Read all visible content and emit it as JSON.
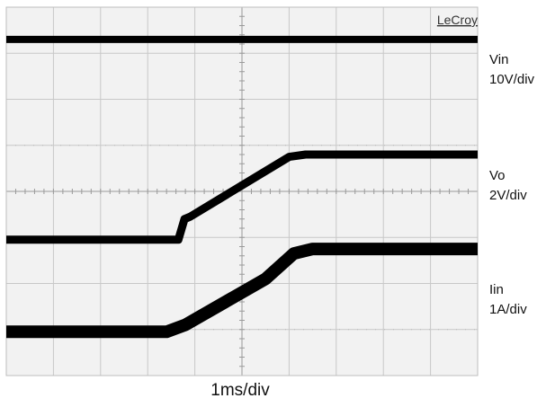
{
  "brand": "LeCroy",
  "x_caption": "1ms/div",
  "colors": {
    "background": "#f2f2f2",
    "grid": "#c8c8c8",
    "trace": "#000000"
  },
  "chart_data": {
    "type": "line",
    "title": "",
    "xlabel": "1ms/div",
    "ylabel": "",
    "x_unit": "ms",
    "xlim": [
      0,
      10
    ],
    "y_unit": "div",
    "ylim": [
      0,
      8
    ],
    "grid": true,
    "legend": "right",
    "series": [
      {
        "name": "Vin",
        "scale": "10V/div",
        "x": [
          0,
          10
        ],
        "y": [
          7.3,
          7.3
        ]
      },
      {
        "name": "Vo",
        "scale": "2V/div",
        "x": [
          0,
          3.65,
          3.78,
          3.9,
          6.0,
          6.35,
          10
        ],
        "y": [
          2.95,
          2.95,
          3.4,
          3.45,
          4.75,
          4.8,
          4.8
        ]
      },
      {
        "name": "Iin",
        "scale": "1A/div",
        "x": [
          0,
          3.4,
          3.8,
          5.5,
          6.1,
          6.5,
          10
        ],
        "y": [
          0.95,
          0.95,
          1.1,
          2.1,
          2.65,
          2.75,
          2.75
        ]
      }
    ]
  },
  "labels": [
    {
      "name": "Vin",
      "scale": "10V/div"
    },
    {
      "name": "Vo",
      "scale": "2V/div"
    },
    {
      "name": "Iin",
      "scale": "1A/div"
    }
  ]
}
